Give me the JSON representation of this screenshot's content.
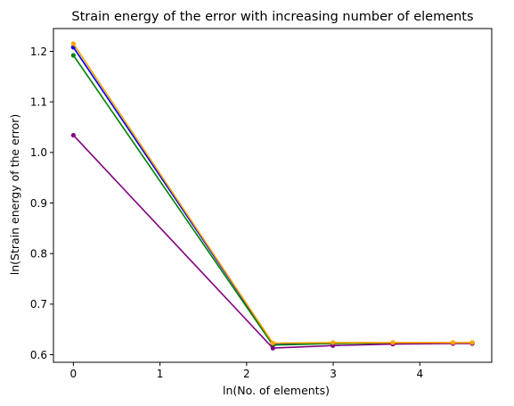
{
  "chart_data": {
    "type": "line",
    "title": "Strain energy of the error with increasing number of elements",
    "xlabel": "ln(No. of elements)",
    "ylabel": "ln(Strain energy of the error)",
    "xlim": [
      -0.23,
      4.83
    ],
    "ylim": [
      0.585,
      1.245
    ],
    "xticks": [
      0,
      1,
      2,
      3,
      4
    ],
    "yticks": [
      0.6,
      0.7,
      0.8,
      0.9,
      1.0,
      1.1,
      1.2
    ],
    "grid": false,
    "legend": "none",
    "series": [
      {
        "color": "#0000ff",
        "points": [
          [
            0,
            1.208
          ],
          [
            2.303,
            0.622
          ],
          [
            2.996,
            0.623
          ],
          [
            3.689,
            0.623
          ],
          [
            4.382,
            0.623
          ],
          [
            4.605,
            0.623
          ]
        ]
      },
      {
        "color": "#008000",
        "points": [
          [
            0,
            1.192
          ],
          [
            2.303,
            0.619
          ],
          [
            2.996,
            0.622
          ],
          [
            3.689,
            0.623
          ],
          [
            4.382,
            0.623
          ],
          [
            4.605,
            0.623
          ]
        ]
      },
      {
        "color": "#800080",
        "points": [
          [
            0,
            1.034
          ],
          [
            2.303,
            0.613
          ],
          [
            2.996,
            0.618
          ],
          [
            3.689,
            0.621
          ],
          [
            4.382,
            0.622
          ],
          [
            4.605,
            0.622
          ]
        ]
      },
      {
        "color": "#ffa500",
        "points": [
          [
            0,
            1.215
          ],
          [
            2.303,
            0.623
          ],
          [
            2.996,
            0.624
          ],
          [
            3.689,
            0.624
          ],
          [
            4.382,
            0.624
          ],
          [
            4.605,
            0.624
          ]
        ]
      }
    ]
  }
}
